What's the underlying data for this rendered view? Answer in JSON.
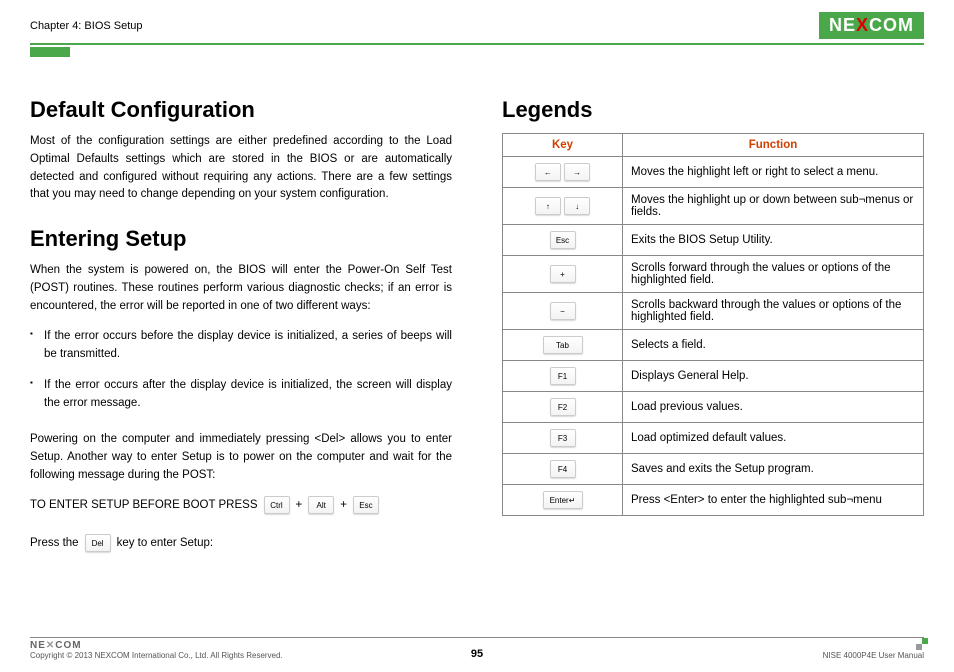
{
  "header": {
    "chapter": "Chapter 4: BIOS Setup",
    "logo_pre": "NE",
    "logo_x": "X",
    "logo_post": "COM"
  },
  "left": {
    "h2a": "Default Configuration",
    "para_a": "Most of the configuration settings are either predefined according to the Load Optimal Defaults settings which are stored in the BIOS or are automatically detected and configured without requiring any actions. There are a few settings that you may need to change depending on your system configuration.",
    "h2b": "Entering Setup",
    "para_b": "When the system is powered on, the BIOS will enter the Power-On Self Test (POST) routines. These routines perform various diagnostic checks; if an error is encountered, the error will be reported in one of two different ways:",
    "bullet1": "If the error occurs before the display device is initialized, a series of beeps will be transmitted.",
    "bullet2": "If the error occurs after the display device is initialized, the screen will display the error message.",
    "para_c": "Powering on the computer and immediately pressing <Del> allows you to enter Setup. Another way to enter Setup is to power on the computer and wait for the following message during the POST:",
    "setup_label": "TO ENTER SETUP BEFORE BOOT PRESS",
    "key_ctrl": "Ctrl",
    "key_alt": "Alt",
    "key_esc": "Esc",
    "plus": "+",
    "press_pre": "Press the",
    "key_del": "Del",
    "press_post": "key to enter Setup:"
  },
  "right": {
    "h2": "Legends",
    "th_key": "Key",
    "th_func": "Function",
    "rows": [
      {
        "k1": "←",
        "k2": "→",
        "func": "Moves the highlight left or right to select a menu."
      },
      {
        "k1": "↑",
        "k2": "↓",
        "func": "Moves the highlight up or down between sub¬menus or fields."
      },
      {
        "k1": "Esc",
        "func": "Exits the BIOS Setup Utility."
      },
      {
        "k1": "+",
        "func": "Scrolls forward through the values or options of the highlighted field."
      },
      {
        "k1": "−",
        "func": "Scrolls backward through the values or options of the highlighted field."
      },
      {
        "k1": "Tab",
        "wide": true,
        "func": "Selects a field."
      },
      {
        "k1": "F1",
        "func": "Displays General Help."
      },
      {
        "k1": "F2",
        "func": "Load previous values."
      },
      {
        "k1": "F3",
        "func": "Load optimized default values."
      },
      {
        "k1": "F4",
        "func": "Saves and exits the Setup program."
      },
      {
        "k1": "Enter↵",
        "wide": true,
        "func": "Press <Enter> to enter the highlighted sub¬menu"
      }
    ]
  },
  "footer": {
    "logo": "NE COM",
    "copyright": "Copyright © 2013 NEXCOM International Co., Ltd. All Rights Reserved.",
    "page": "95",
    "manual": "NISE 4000P4E User Manual"
  }
}
